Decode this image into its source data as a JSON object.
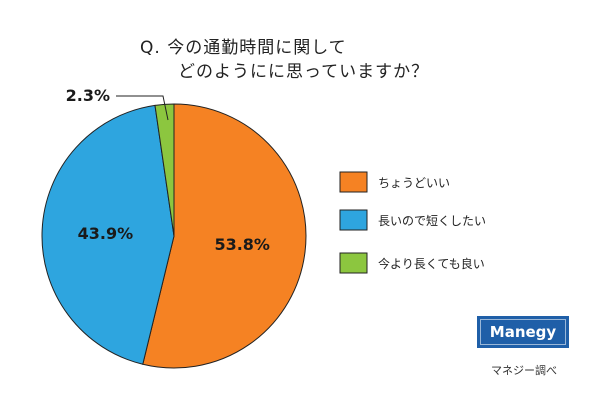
{
  "title": {
    "line1": "Q. 今の通勤時間に関して",
    "line2": "どのようにに思っていますか？"
  },
  "brand": {
    "logo_text": "Manegy",
    "credit": "マネジー調べ"
  },
  "colors": {
    "orange": "#f58223",
    "blue": "#2ea5df",
    "green": "#8cc63f",
    "outline": "#222222",
    "brand": "#1f5fa8"
  },
  "chart_data": {
    "type": "pie",
    "title": "Q. 今の通勤時間に関して どのようにに思っていますか？",
    "start_angle": "12 o'clock",
    "direction": "clockwise",
    "legend_placement": "right",
    "slices": [
      {
        "label": "ちょうどいい",
        "value": 53.8,
        "display": "53.8%",
        "color": "#f58223"
      },
      {
        "label": "長いので短くしたい",
        "value": 43.9,
        "display": "43.9%",
        "color": "#2ea5df"
      },
      {
        "label": "今より長くても良い",
        "value": 2.3,
        "display": "2.3%",
        "color": "#8cc63f"
      }
    ]
  }
}
